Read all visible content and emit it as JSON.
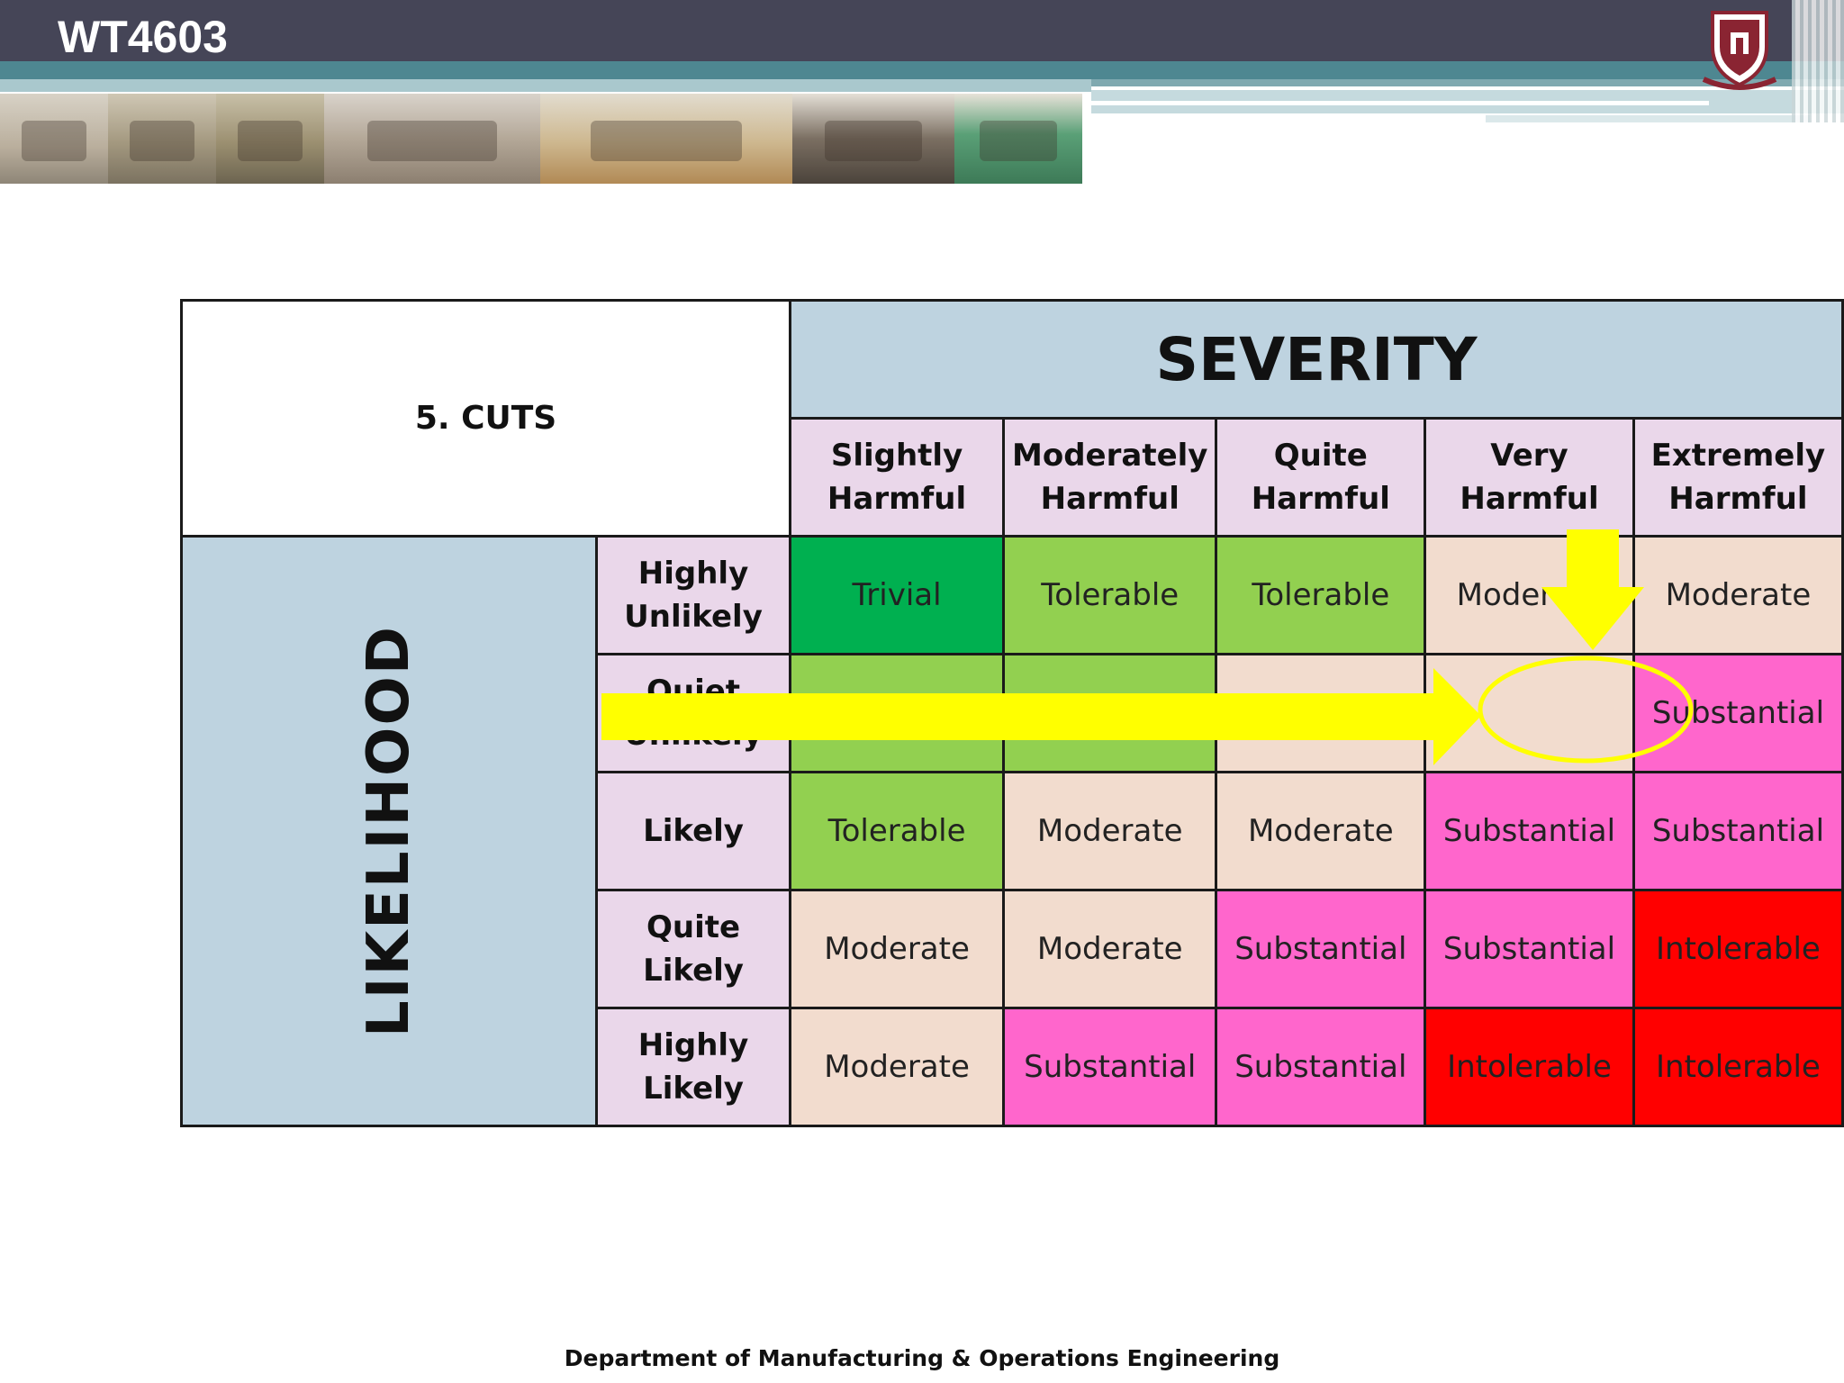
{
  "header": {
    "course_code": "WT4603",
    "colors": {
      "band": "#454557",
      "stripe": "#4e8791"
    },
    "photo_strip": [
      {
        "icon": "bandsaw-photo"
      },
      {
        "icon": "drill-press-photo"
      },
      {
        "icon": "pillar-drill-photo"
      },
      {
        "icon": "planer-photo"
      },
      {
        "icon": "table-saw-photo"
      },
      {
        "icon": "belt-sander-photo"
      },
      {
        "icon": "router-photo"
      }
    ],
    "logo": "university-crest"
  },
  "matrix": {
    "corner_label": "5. CUTS",
    "severity_label": "SEVERITY",
    "likelihood_label": "LIKELIHOOD",
    "severity_levels": [
      {
        "line1": "Slightly",
        "line2": "Harmful"
      },
      {
        "line1": "Moderately",
        "line2": "Harmful"
      },
      {
        "line1": "Quite",
        "line2": "Harmful"
      },
      {
        "line1": "Very",
        "line2": "Harmful"
      },
      {
        "line1": "Extremely",
        "line2": "Harmful"
      }
    ],
    "likelihood_levels": [
      {
        "line1": "Highly",
        "line2": "Unlikely"
      },
      {
        "line1": "Quiet",
        "line2": "Unlikely"
      },
      {
        "line1": "Likely",
        "line2": ""
      },
      {
        "line1": "Quite",
        "line2": "Likely"
      },
      {
        "line1": "Highly",
        "line2": "Likely"
      }
    ],
    "rows": [
      [
        "Trivial",
        "Tolerable",
        "Tolerable",
        "Moderate",
        "Moderate"
      ],
      [
        "",
        "",
        "",
        "",
        "Substantial"
      ],
      [
        "Tolerable",
        "Moderate",
        "Moderate",
        "Substantial",
        "Substantial"
      ],
      [
        "Moderate",
        "Moderate",
        "Substantial",
        "Substantial",
        "Intolerable"
      ],
      [
        "Moderate",
        "Substantial",
        "Substantial",
        "Intolerable",
        "Intolerable"
      ]
    ],
    "row_colors": [
      [
        "#00b050",
        "#92d050",
        "#92d050",
        "#f2dcce",
        "#f2dcce"
      ],
      [
        "#92d050",
        "#92d050",
        "#f2dcce",
        "#f2dcce",
        "#ff66cc"
      ],
      [
        "#92d050",
        "#f2dcce",
        "#f2dcce",
        "#ff66cc",
        "#ff66cc"
      ],
      [
        "#f2dcce",
        "#f2dcce",
        "#ff66cc",
        "#ff66cc",
        "#ff0000"
      ],
      [
        "#f2dcce",
        "#ff66cc",
        "#ff66cc",
        "#ff0000",
        "#ff0000"
      ]
    ],
    "highlight": {
      "color": "#ffff00",
      "selected_row": 1,
      "selected_col": 4,
      "shapes": [
        "horizontal-arrow",
        "down-arrow",
        "circle"
      ]
    }
  },
  "footer": {
    "text": "Department of Manufacturing & Operations Engineering"
  }
}
